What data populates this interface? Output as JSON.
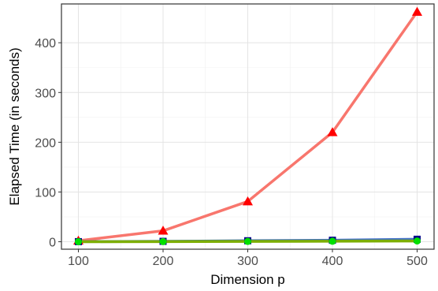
{
  "chart_data": {
    "type": "line",
    "title": "",
    "xlabel": "Dimension p",
    "ylabel": "Elapsed Time (in seconds)",
    "x": [
      100,
      200,
      300,
      400,
      500
    ],
    "xlim": [
      80,
      520
    ],
    "ylim": [
      -15,
      478
    ],
    "x_ticks": [
      100,
      200,
      300,
      400,
      500
    ],
    "y_ticks": [
      0,
      100,
      200,
      300,
      400
    ],
    "x_tick_labels": [
      "100",
      "200",
      "300",
      "400",
      "500"
    ],
    "y_tick_labels": [
      "0",
      "100",
      "200",
      "300",
      "400"
    ],
    "grid": true,
    "legend": "none",
    "series": [
      {
        "values": [
          2,
          22,
          81,
          220,
          462
        ],
        "color": "#f8766d",
        "marker": "triangle",
        "marker_color": "#ff0000"
      },
      {
        "values": [
          0.2,
          0.8,
          2,
          3,
          5
        ],
        "color": "#4472c4",
        "marker": "square",
        "marker_color": "#00008b"
      },
      {
        "values": [
          0.1,
          0.3,
          0.6,
          1,
          1.5
        ],
        "color": "#7cae00",
        "marker": "circle",
        "marker_color": "#00e000"
      }
    ]
  }
}
